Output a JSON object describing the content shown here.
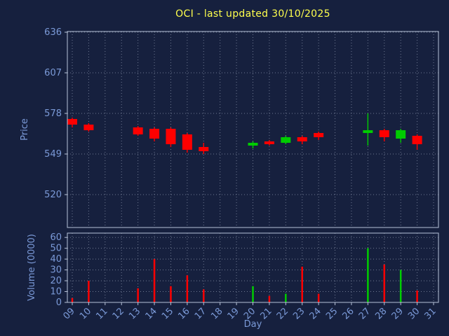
{
  "chart_data": {
    "type": "candlestick",
    "title": "OCI - last updated 30/10/2025",
    "xlabel": "Day",
    "ylabel": "Price",
    "ylabel2": "Volume (0000)",
    "x_ticks": [
      "09",
      "10",
      "11",
      "12",
      "13",
      "14",
      "15",
      "16",
      "17",
      "18",
      "19",
      "20",
      "21",
      "22",
      "23",
      "24",
      "25",
      "26",
      "27",
      "28",
      "29",
      "30",
      "31"
    ],
    "price_ticks": [
      520,
      549,
      578,
      607,
      636
    ],
    "price_range": [
      496.5,
      636.5
    ],
    "volume_ticks": [
      0,
      10,
      20,
      30,
      40,
      50,
      60
    ],
    "volume_range": [
      0,
      64
    ],
    "grid": "dotted",
    "legend": "none",
    "candles": [
      {
        "day": "09",
        "open": 574,
        "high": 575,
        "low": 568,
        "close": 570,
        "volume": 4
      },
      {
        "day": "10",
        "open": 570,
        "high": 571,
        "low": 565,
        "close": 566,
        "volume": 20
      },
      {
        "day": "13",
        "open": 568,
        "high": 569,
        "low": 562,
        "close": 563,
        "volume": 13
      },
      {
        "day": "14",
        "open": 567,
        "high": 568,
        "low": 558,
        "close": 560,
        "volume": 40
      },
      {
        "day": "15",
        "open": 567,
        "high": 568,
        "low": 554,
        "close": 556,
        "volume": 15
      },
      {
        "day": "16",
        "open": 563,
        "high": 564,
        "low": 550,
        "close": 552,
        "volume": 25
      },
      {
        "day": "17",
        "open": 554,
        "high": 557,
        "low": 549,
        "close": 551,
        "volume": 12
      },
      {
        "day": "20",
        "open": 555,
        "high": 558,
        "low": 553,
        "close": 557,
        "volume": 15
      },
      {
        "day": "21",
        "open": 558,
        "high": 559,
        "low": 555,
        "close": 556,
        "volume": 6
      },
      {
        "day": "22",
        "open": 557,
        "high": 562,
        "low": 556,
        "close": 561,
        "volume": 8
      },
      {
        "day": "23",
        "open": 561,
        "high": 562,
        "low": 556,
        "close": 558,
        "volume": 33
      },
      {
        "day": "24",
        "open": 564,
        "high": 565,
        "low": 559,
        "close": 561,
        "volume": 8
      },
      {
        "day": "27",
        "open": 564,
        "high": 578,
        "low": 555,
        "close": 566,
        "volume": 50
      },
      {
        "day": "28",
        "open": 566,
        "high": 567,
        "low": 558,
        "close": 561,
        "volume": 35
      },
      {
        "day": "29",
        "open": 560,
        "high": 567,
        "low": 557,
        "close": 566,
        "volume": 30
      },
      {
        "day": "30",
        "open": 562,
        "high": 563,
        "low": 552,
        "close": 556,
        "volume": 11
      }
    ],
    "colors": {
      "background": "#16203e",
      "title": "#ffff4d",
      "axis_text": "#7b9ad8",
      "frame": "#b7c2d8",
      "grid": "#c8d2e4",
      "up": "#00cc00",
      "down": "#ff0000"
    }
  }
}
